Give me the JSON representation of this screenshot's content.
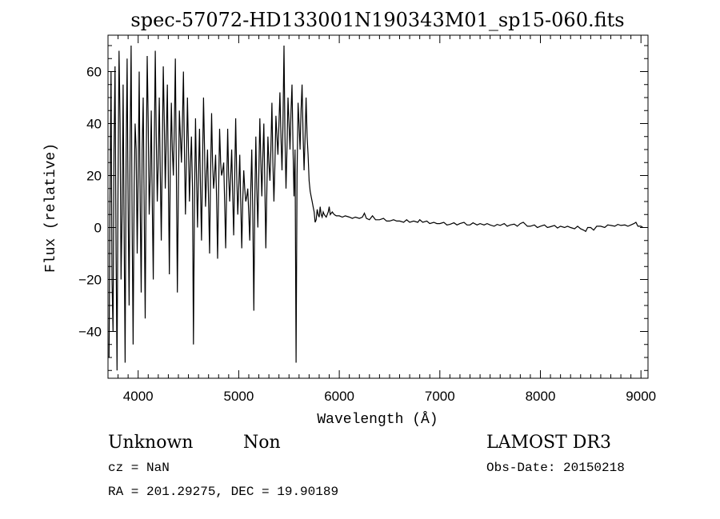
{
  "chart_data": {
    "type": "line",
    "title": "spec-57072-HD133001N190343M01_sp15-060.fits",
    "xlabel": "Wavelength (Å)",
    "ylabel": "Flux (relative)",
    "xlim": [
      3700,
      9070
    ],
    "ylim": [
      -58,
      74
    ],
    "xticks": [
      4000,
      5000,
      6000,
      7000,
      8000,
      9000
    ],
    "yticks": [
      -40,
      -20,
      0,
      20,
      40,
      60
    ],
    "xtick_labels": [
      "4000",
      "5000",
      "6000",
      "7000",
      "8000",
      "9000"
    ],
    "ytick_labels": [
      "−40",
      "−20",
      "0",
      "20",
      "40",
      "60"
    ],
    "grid": false,
    "series": [
      {
        "name": "flux",
        "color": "#000000",
        "points": [
          [
            3710,
            -50
          ],
          [
            3720,
            10
          ],
          [
            3730,
            60
          ],
          [
            3740,
            -20
          ],
          [
            3750,
            -40
          ],
          [
            3760,
            30
          ],
          [
            3770,
            62
          ],
          [
            3780,
            -10
          ],
          [
            3790,
            -55
          ],
          [
            3800,
            20
          ],
          [
            3810,
            68
          ],
          [
            3820,
            40
          ],
          [
            3830,
            -20
          ],
          [
            3840,
            5
          ],
          [
            3850,
            55
          ],
          [
            3860,
            0
          ],
          [
            3870,
            -52
          ],
          [
            3880,
            25
          ],
          [
            3890,
            65
          ],
          [
            3900,
            10
          ],
          [
            3910,
            -30
          ],
          [
            3920,
            35
          ],
          [
            3930,
            70
          ],
          [
            3940,
            0
          ],
          [
            3950,
            -45
          ],
          [
            3960,
            15
          ],
          [
            3970,
            40
          ],
          [
            3980,
            30
          ],
          [
            3990,
            -10
          ],
          [
            4000,
            20
          ],
          [
            4010,
            60
          ],
          [
            4020,
            10
          ],
          [
            4030,
            -25
          ],
          [
            4040,
            30
          ],
          [
            4050,
            50
          ],
          [
            4060,
            5
          ],
          [
            4070,
            -35
          ],
          [
            4080,
            25
          ],
          [
            4090,
            66
          ],
          [
            4100,
            40
          ],
          [
            4110,
            5
          ],
          [
            4120,
            20
          ],
          [
            4130,
            45
          ],
          [
            4140,
            10
          ],
          [
            4150,
            -20
          ],
          [
            4160,
            30
          ],
          [
            4170,
            68
          ],
          [
            4180,
            35
          ],
          [
            4190,
            10
          ],
          [
            4200,
            25
          ],
          [
            4210,
            50
          ],
          [
            4220,
            20
          ],
          [
            4230,
            -5
          ],
          [
            4240,
            30
          ],
          [
            4250,
            62
          ],
          [
            4260,
            40
          ],
          [
            4270,
            15
          ],
          [
            4280,
            35
          ],
          [
            4290,
            55
          ],
          [
            4300,
            20
          ],
          [
            4310,
            -18
          ],
          [
            4320,
            25
          ],
          [
            4330,
            48
          ],
          [
            4340,
            30
          ],
          [
            4350,
            20
          ],
          [
            4360,
            40
          ],
          [
            4370,
            65
          ],
          [
            4380,
            20
          ],
          [
            4390,
            -25
          ],
          [
            4400,
            15
          ],
          [
            4410,
            45
          ],
          [
            4420,
            35
          ],
          [
            4430,
            25
          ],
          [
            4440,
            40
          ],
          [
            4450,
            60
          ],
          [
            4460,
            30
          ],
          [
            4470,
            5
          ],
          [
            4480,
            25
          ],
          [
            4490,
            50
          ],
          [
            4500,
            30
          ],
          [
            4510,
            10
          ],
          [
            4520,
            25
          ],
          [
            4530,
            35
          ],
          [
            4540,
            15
          ],
          [
            4550,
            -45
          ],
          [
            4560,
            10
          ],
          [
            4570,
            42
          ],
          [
            4580,
            20
          ],
          [
            4590,
            0
          ],
          [
            4600,
            20
          ],
          [
            4610,
            38
          ],
          [
            4620,
            15
          ],
          [
            4630,
            -5
          ],
          [
            4640,
            25
          ],
          [
            4650,
            50
          ],
          [
            4660,
            30
          ],
          [
            4670,
            8
          ],
          [
            4680,
            20
          ],
          [
            4690,
            30
          ],
          [
            4700,
            10
          ],
          [
            4710,
            -10
          ],
          [
            4720,
            20
          ],
          [
            4730,
            44
          ],
          [
            4740,
            25
          ],
          [
            4750,
            15
          ],
          [
            4760,
            20
          ],
          [
            4770,
            28
          ],
          [
            4780,
            10
          ],
          [
            4790,
            -12
          ],
          [
            4800,
            15
          ],
          [
            4810,
            38
          ],
          [
            4820,
            25
          ],
          [
            4830,
            20
          ],
          [
            4840,
            22
          ],
          [
            4850,
            25
          ],
          [
            4860,
            10
          ],
          [
            4870,
            -8
          ],
          [
            4880,
            15
          ],
          [
            4890,
            38
          ],
          [
            4900,
            20
          ],
          [
            4910,
            10
          ],
          [
            4920,
            20
          ],
          [
            4930,
            30
          ],
          [
            4940,
            12
          ],
          [
            4950,
            -3
          ],
          [
            4960,
            20
          ],
          [
            4970,
            42
          ],
          [
            4980,
            20
          ],
          [
            4990,
            5
          ],
          [
            5000,
            15
          ],
          [
            5010,
            28
          ],
          [
            5020,
            10
          ],
          [
            5030,
            -8
          ],
          [
            5040,
            10
          ],
          [
            5050,
            22
          ],
          [
            5060,
            15
          ],
          [
            5070,
            10
          ],
          [
            5080,
            12
          ],
          [
            5090,
            15
          ],
          [
            5100,
            5
          ],
          [
            5110,
            -5
          ],
          [
            5120,
            15
          ],
          [
            5130,
            30
          ],
          [
            5140,
            5
          ],
          [
            5150,
            -32
          ],
          [
            5160,
            10
          ],
          [
            5170,
            35
          ],
          [
            5180,
            15
          ],
          [
            5190,
            0
          ],
          [
            5200,
            20
          ],
          [
            5210,
            42
          ],
          [
            5220,
            25
          ],
          [
            5230,
            12
          ],
          [
            5240,
            28
          ],
          [
            5250,
            40
          ],
          [
            5260,
            15
          ],
          [
            5270,
            -8
          ],
          [
            5280,
            15
          ],
          [
            5290,
            35
          ],
          [
            5300,
            25
          ],
          [
            5310,
            18
          ],
          [
            5320,
            30
          ],
          [
            5330,
            48
          ],
          [
            5340,
            25
          ],
          [
            5350,
            10
          ],
          [
            5360,
            25
          ],
          [
            5370,
            43
          ],
          [
            5380,
            35
          ],
          [
            5390,
            28
          ],
          [
            5400,
            40
          ],
          [
            5410,
            52
          ],
          [
            5420,
            35
          ],
          [
            5430,
            22
          ],
          [
            5440,
            40
          ],
          [
            5450,
            70
          ],
          [
            5460,
            35
          ],
          [
            5470,
            15
          ],
          [
            5480,
            30
          ],
          [
            5490,
            50
          ],
          [
            5500,
            40
          ],
          [
            5510,
            30
          ],
          [
            5520,
            45
          ],
          [
            5530,
            55
          ],
          [
            5540,
            30
          ],
          [
            5550,
            12
          ],
          [
            5560,
            30
          ],
          [
            5570,
            -52
          ],
          [
            5580,
            20
          ],
          [
            5590,
            48
          ],
          [
            5600,
            40
          ],
          [
            5610,
            30
          ],
          [
            5620,
            45
          ],
          [
            5630,
            55
          ],
          [
            5640,
            35
          ],
          [
            5650,
            22
          ],
          [
            5660,
            35
          ],
          [
            5670,
            50
          ],
          [
            5680,
            35
          ],
          [
            5690,
            28
          ],
          [
            5700,
            18
          ],
          [
            5710,
            14
          ],
          [
            5720,
            12
          ],
          [
            5730,
            10
          ],
          [
            5740,
            8
          ],
          [
            5750,
            6
          ],
          [
            5760,
            2
          ],
          [
            5770,
            3
          ],
          [
            5780,
            7
          ],
          [
            5790,
            5
          ],
          [
            5800,
            4
          ],
          [
            5810,
            8
          ],
          [
            5820,
            5
          ],
          [
            5830,
            4
          ],
          [
            5840,
            6
          ],
          [
            5850,
            5
          ],
          [
            5870,
            4
          ],
          [
            5890,
            6
          ],
          [
            5900,
            8
          ],
          [
            5910,
            5
          ],
          [
            5930,
            6
          ],
          [
            5950,
            5
          ],
          [
            5970,
            4.5
          ],
          [
            6000,
            4.5
          ],
          [
            6030,
            4
          ],
          [
            6060,
            4.5
          ],
          [
            6100,
            4
          ],
          [
            6130,
            3.5
          ],
          [
            6160,
            4
          ],
          [
            6200,
            3.5
          ],
          [
            6230,
            4
          ],
          [
            6250,
            5.5
          ],
          [
            6270,
            3.5
          ],
          [
            6300,
            3
          ],
          [
            6330,
            4.5
          ],
          [
            6360,
            3
          ],
          [
            6400,
            3
          ],
          [
            6440,
            3.5
          ],
          [
            6470,
            2.5
          ],
          [
            6500,
            2.5
          ],
          [
            6540,
            3
          ],
          [
            6570,
            2.5
          ],
          [
            6600,
            2.5
          ],
          [
            6640,
            2
          ],
          [
            6670,
            3
          ],
          [
            6700,
            2
          ],
          [
            6740,
            2.5
          ],
          [
            6780,
            2
          ],
          [
            6800,
            3
          ],
          [
            6830,
            2
          ],
          [
            6870,
            2.5
          ],
          [
            6900,
            1.5
          ],
          [
            6940,
            2
          ],
          [
            6970,
            1.5
          ],
          [
            7000,
            1.5
          ],
          [
            7040,
            2
          ],
          [
            7070,
            1
          ],
          [
            7100,
            1.2
          ],
          [
            7140,
            1.8
          ],
          [
            7170,
            1
          ],
          [
            7200,
            1.5
          ],
          [
            7240,
            2
          ],
          [
            7270,
            1
          ],
          [
            7300,
            1
          ],
          [
            7330,
            1.8
          ],
          [
            7370,
            1
          ],
          [
            7400,
            1.5
          ],
          [
            7440,
            1
          ],
          [
            7470,
            1.5
          ],
          [
            7500,
            1
          ],
          [
            7540,
            0.5
          ],
          [
            7570,
            1.2
          ],
          [
            7600,
            0.8
          ],
          [
            7640,
            1.5
          ],
          [
            7670,
            0.5
          ],
          [
            7700,
            1
          ],
          [
            7740,
            1.3
          ],
          [
            7770,
            0.5
          ],
          [
            7800,
            1.5
          ],
          [
            7830,
            2
          ],
          [
            7870,
            0.5
          ],
          [
            7900,
            0.5
          ],
          [
            7940,
            1
          ],
          [
            7970,
            0
          ],
          [
            8000,
            0.5
          ],
          [
            8040,
            1
          ],
          [
            8070,
            0
          ],
          [
            8100,
            0.3
          ],
          [
            8140,
            0.8
          ],
          [
            8170,
            -0.2
          ],
          [
            8200,
            0.5
          ],
          [
            8240,
            0
          ],
          [
            8270,
            0.5
          ],
          [
            8300,
            0
          ],
          [
            8340,
            -0.5
          ],
          [
            8370,
            0.5
          ],
          [
            8400,
            -0.5
          ],
          [
            8430,
            -1
          ],
          [
            8450,
            -1.5
          ],
          [
            8470,
            0
          ],
          [
            8500,
            0
          ],
          [
            8530,
            -1
          ],
          [
            8560,
            0.5
          ],
          [
            8600,
            0.5
          ],
          [
            8640,
            0
          ],
          [
            8670,
            1
          ],
          [
            8700,
            0.8
          ],
          [
            8740,
            0.5
          ],
          [
            8770,
            1.2
          ],
          [
            8800,
            0.8
          ],
          [
            8840,
            1
          ],
          [
            8870,
            0.5
          ],
          [
            8900,
            1
          ],
          [
            8930,
            1.5
          ],
          [
            8950,
            2
          ],
          [
            8970,
            0.5
          ],
          [
            9000,
            0.5
          ],
          [
            9020,
            0
          ]
        ]
      }
    ]
  },
  "info": {
    "object_class": "Unknown",
    "subclass": "Non",
    "cz": "cz = NaN",
    "coords": "RA = 201.29275, DEC =  19.90189",
    "survey": "LAMOST DR3",
    "obs_date": "Obs-Date: 20150218"
  }
}
